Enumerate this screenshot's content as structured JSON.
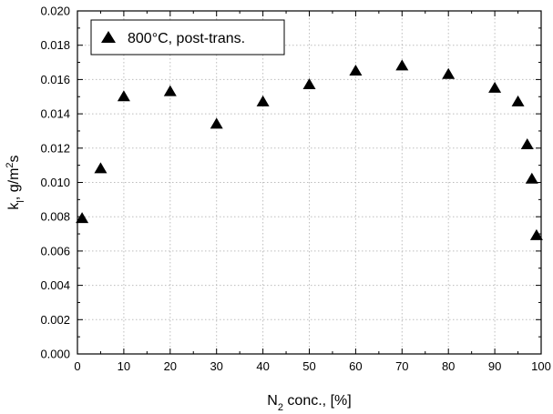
{
  "chart_data": {
    "type": "scatter",
    "xlabel_main": "N",
    "xlabel_sub": "2",
    "xlabel_rest": " conc., [%]",
    "ylabel_main": "k",
    "ylabel_sub": "l",
    "ylabel_mid": ", g/m",
    "ylabel_sup": "2",
    "ylabel_end": "s",
    "xlim": [
      0,
      100
    ],
    "ylim": [
      0,
      0.02
    ],
    "xticks": [
      0,
      10,
      20,
      30,
      40,
      50,
      60,
      70,
      80,
      90,
      100
    ],
    "xtick_labels": [
      "0",
      "10",
      "20",
      "30",
      "40",
      "50",
      "60",
      "70",
      "80",
      "90",
      "100"
    ],
    "yticks": [
      0,
      0.002,
      0.004,
      0.006,
      0.008,
      0.01,
      0.012,
      0.014,
      0.016,
      0.018,
      0.02
    ],
    "ytick_labels": [
      "0.000",
      "0.002",
      "0.004",
      "0.006",
      "0.008",
      "0.010",
      "0.012",
      "0.014",
      "0.016",
      "0.018",
      "0.020"
    ],
    "grid": true,
    "legend_position": "top-left",
    "marker": "triangle-up",
    "marker_color": "#000000",
    "series": [
      {
        "name": "800°C, post-trans.",
        "points": [
          {
            "x": 1,
            "y": 0.0079
          },
          {
            "x": 5,
            "y": 0.0108
          },
          {
            "x": 10,
            "y": 0.015
          },
          {
            "x": 20,
            "y": 0.0153
          },
          {
            "x": 30,
            "y": 0.0134
          },
          {
            "x": 40,
            "y": 0.0147
          },
          {
            "x": 50,
            "y": 0.0157
          },
          {
            "x": 60,
            "y": 0.0165
          },
          {
            "x": 70,
            "y": 0.0168
          },
          {
            "x": 80,
            "y": 0.0163
          },
          {
            "x": 90,
            "y": 0.0155
          },
          {
            "x": 95,
            "y": 0.0147
          },
          {
            "x": 97,
            "y": 0.0122
          },
          {
            "x": 98,
            "y": 0.0102
          },
          {
            "x": 99,
            "y": 0.0069
          }
        ]
      }
    ]
  }
}
